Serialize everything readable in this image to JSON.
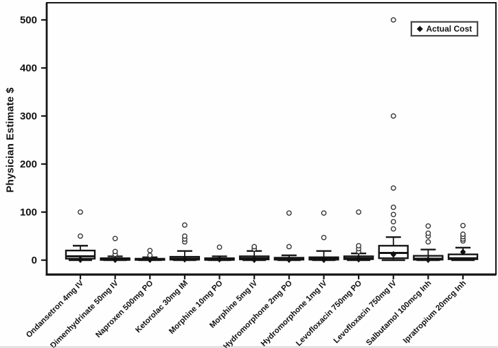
{
  "chart_data": {
    "type": "boxplot",
    "title": "",
    "xlabel": "",
    "ylabel": "Physician Estimate $",
    "ylim": [
      -30,
      535
    ],
    "y_ticks": [
      0,
      100,
      200,
      300,
      400,
      500
    ],
    "grid": false,
    "legend": {
      "label": "Actual Cost",
      "marker": "filled-diamond",
      "position": "top-right"
    },
    "categories": [
      "Ondansetron 4mg IV",
      "Dimenhydrinate 50mg IV",
      "Naproxen 500mg PO",
      "Ketorolac 30mg IM",
      "Morphine 10mg PO",
      "Morphine 5mg IV",
      "Hydromorphone 2mg PO",
      "Hydromorphone 1mg IV",
      "Levofloxacin 750mg PO",
      "Levofloxacin 750mg IV",
      "Salbutamol 100mcg Inh",
      "Ipratropium 20mcg Inh"
    ],
    "boxes": [
      {
        "category": "Ondansetron 4mg IV",
        "whisker_low": 0,
        "q1": 3,
        "median": 8,
        "q3": 20,
        "whisker_high": 30,
        "outliers": [
          50,
          100
        ],
        "actual_cost": 1
      },
      {
        "category": "Dimenhydrinate 50mg IV",
        "whisker_low": 0,
        "q1": 0.5,
        "median": 2,
        "q3": 4,
        "whisker_high": 8,
        "outliers": [
          12,
          18,
          45
        ],
        "actual_cost": 1
      },
      {
        "category": "Naproxen 500mg PO",
        "whisker_low": 0,
        "q1": 0.5,
        "median": 1.5,
        "q3": 3,
        "whisker_high": 6,
        "outliers": [
          10,
          20
        ],
        "actual_cost": 1
      },
      {
        "category": "Ketorolac 30mg IM",
        "whisker_low": 0,
        "q1": 1,
        "median": 3,
        "q3": 7,
        "whisker_high": 19,
        "outliers": [
          38,
          44,
          50,
          73
        ],
        "actual_cost": 2
      },
      {
        "category": "Morphine 10mg PO",
        "whisker_low": 0,
        "q1": 0.5,
        "median": 2,
        "q3": 4,
        "whisker_high": 8,
        "outliers": [
          27
        ],
        "actual_cost": 2
      },
      {
        "category": "Morphine 5mg IV",
        "whisker_low": 0,
        "q1": 1.5,
        "median": 4,
        "q3": 8,
        "whisker_high": 19,
        "outliers": [
          23,
          28
        ],
        "actual_cost": 1
      },
      {
        "category": "Hydromorphone 2mg PO",
        "whisker_low": 0,
        "q1": 1,
        "median": 2.5,
        "q3": 5,
        "whisker_high": 10,
        "outliers": [
          28,
          98
        ],
        "actual_cost": 1
      },
      {
        "category": "Hydromorphone 1mg IV",
        "whisker_low": 0,
        "q1": 1,
        "median": 3,
        "q3": 6,
        "whisker_high": 19,
        "outliers": [
          47,
          98
        ],
        "actual_cost": 1
      },
      {
        "category": "Levofloxacin 750mg PO",
        "whisker_low": 0,
        "q1": 2,
        "median": 4,
        "q3": 8,
        "whisker_high": 14,
        "outliers": [
          18,
          24,
          30,
          100
        ],
        "actual_cost": 2
      },
      {
        "category": "Levofloxacin 750mg IV",
        "whisker_low": 0,
        "q1": 4,
        "median": 15,
        "q3": 30,
        "whisker_high": 48,
        "outliers": [
          65,
          80,
          95,
          110,
          150,
          300,
          500
        ],
        "actual_cost": 12
      },
      {
        "category": "Salbutamol 100mcg Inh",
        "whisker_low": 0,
        "q1": 1,
        "median": 3,
        "q3": 9,
        "whisker_high": 22,
        "outliers": [
          38,
          50,
          56,
          71
        ],
        "actual_cost": 1
      },
      {
        "category": "Ipratropium 20mcg Inh",
        "whisker_low": 0,
        "q1": 2,
        "median": 4,
        "q3": 12,
        "whisker_high": 26,
        "outliers": [
          40,
          44,
          49,
          54,
          72
        ],
        "actual_cost": 17
      }
    ],
    "colors": {
      "stroke": "#141414",
      "box_fill": "#ffffff",
      "outlier_stroke": "#333333",
      "actual_cost_fill": "#111111",
      "background": "#fefefe"
    }
  }
}
